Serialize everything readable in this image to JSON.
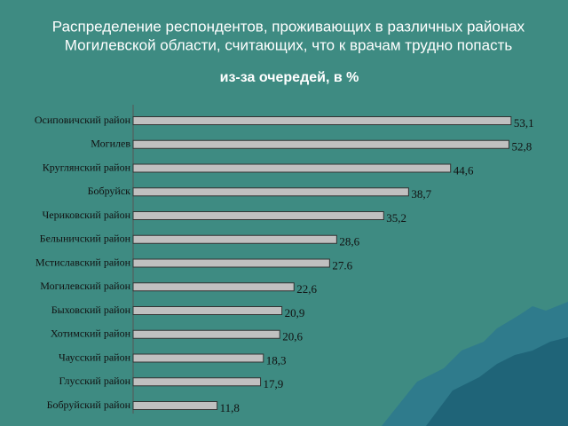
{
  "chart_data": {
    "type": "bar",
    "orientation": "horizontal",
    "title": [
      "Распределение респондентов, проживающих в различных районах",
      "Могилевской области, считающих, что к врачам трудно попасть"
    ],
    "subtitle": "из-за очередей, в %",
    "categories": [
      "Осиповичский район",
      "Могилев",
      "Круглянский район",
      "Бобруйск",
      "Чериковский район",
      "Белыничский район",
      "Мстиславский район",
      "Могилевский район",
      "Быховский район",
      "Хотимский район",
      "Чаусский район",
      "Глусский район",
      "Бобруйский район"
    ],
    "values": [
      53.1,
      52.8,
      44.6,
      38.7,
      35.2,
      28.6,
      27.6,
      22.6,
      20.9,
      20.6,
      18.3,
      17.9,
      11.8
    ],
    "value_labels": [
      "53,1",
      "52,8",
      "44,6",
      "38,7",
      "35,2",
      "28,6",
      "27.6",
      "22,6",
      "20,9",
      "20,6",
      "18,3",
      "17,9",
      "11,8"
    ],
    "color": "#c0c0c0"
  }
}
